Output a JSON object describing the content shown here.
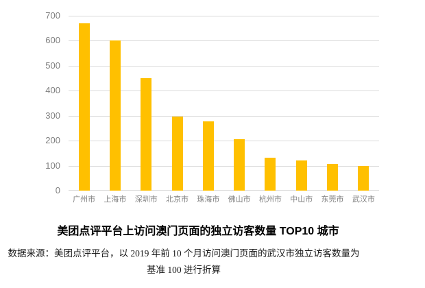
{
  "title": "美团点评平台上访问澳门页面的独立访客数量 TOP10 城市",
  "source_note": "数据来源：美团点评平台，以 2019 年前 10 个月访问澳门页面的武汉市独立访客数量为基准 100 进行折算",
  "colors": {
    "bar": "#FFC000",
    "gridline": "#D9D9D9",
    "axis_label": "#7F7F7F",
    "title_text": "#000000",
    "note_text": "#1A1A1A",
    "background": "#FFFFFF"
  },
  "chart_data": {
    "type": "bar",
    "categories": [
      "广州市",
      "上海市",
      "深圳市",
      "北京市",
      "珠海市",
      "佛山市",
      "杭州市",
      "中山市",
      "东莞市",
      "武汉市"
    ],
    "values": [
      670,
      600,
      450,
      297,
      277,
      205,
      133,
      120,
      108,
      100
    ],
    "title": "美团点评平台上访问澳门页面的独立访客数量 TOP10 城市",
    "xlabel": "",
    "ylabel": "",
    "ylim": [
      0,
      700
    ],
    "yticks": [
      0,
      100,
      200,
      300,
      400,
      500,
      600,
      700
    ],
    "grid": true,
    "legend": false,
    "annotation": "数据来源：美团点评平台，以 2019 年前 10 个月访问澳门页面的武汉市独立访客数量为基准 100 进行折算"
  }
}
